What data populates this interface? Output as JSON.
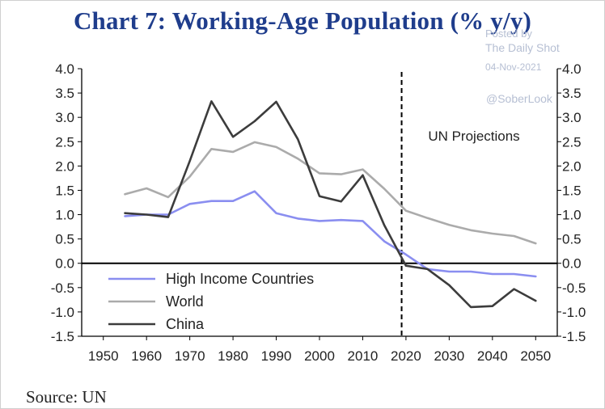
{
  "watermark": {
    "posted_by": "Posted by",
    "publisher": "The Daily Shot",
    "date": "04-Nov-2021",
    "handle": "@SoberLook"
  },
  "chart_data": {
    "type": "line",
    "title": "Chart 7: Working-Age Population (% y/y)",
    "source": "Source: UN",
    "xlim": [
      1945,
      2055
    ],
    "ylim": [
      -1.5,
      4.0
    ],
    "x_ticks": [
      1950,
      1960,
      1970,
      1980,
      1990,
      2000,
      2010,
      2020,
      2030,
      2040,
      2050
    ],
    "y_ticks": [
      4.0,
      3.5,
      3.0,
      2.5,
      2.0,
      1.5,
      1.0,
      0.5,
      0.0,
      -0.5,
      -1.0,
      -1.5
    ],
    "y_tick_labels": [
      "4.0",
      "3.5",
      "3.0",
      "2.5",
      "2.0",
      "1.5",
      "1.0",
      "0.5",
      "0.0",
      "-0.5",
      "-1.0",
      "-1.5"
    ],
    "divider_year": 2019,
    "annotation": "UN Projections",
    "grid": false,
    "legend_position": "bottom-left",
    "colors": {
      "High Income Countries": "#8a8ef0",
      "World": "#ababab",
      "China": "#3c3c3c",
      "title": "#1f3d8c"
    },
    "series": [
      {
        "name": "High Income Countries",
        "x": [
          1955,
          1960,
          1965,
          1970,
          1975,
          1980,
          1985,
          1990,
          1995,
          2000,
          2005,
          2010,
          2015,
          2020,
          2025,
          2030,
          2035,
          2040,
          2045,
          2050
        ],
        "values": [
          0.97,
          1.0,
          1.0,
          1.22,
          1.28,
          1.28,
          1.48,
          1.03,
          0.92,
          0.87,
          0.89,
          0.87,
          0.45,
          0.18,
          -0.12,
          -0.17,
          -0.17,
          -0.22,
          -0.22,
          -0.27
        ]
      },
      {
        "name": "World",
        "x": [
          1955,
          1960,
          1965,
          1970,
          1975,
          1980,
          1985,
          1990,
          1995,
          2000,
          2005,
          2010,
          2015,
          2020,
          2025,
          2030,
          2035,
          2040,
          2045,
          2050
        ],
        "values": [
          1.42,
          1.54,
          1.36,
          1.78,
          2.35,
          2.29,
          2.49,
          2.39,
          2.15,
          1.85,
          1.83,
          1.93,
          1.53,
          1.08,
          0.93,
          0.79,
          0.68,
          0.61,
          0.56,
          0.41
        ]
      },
      {
        "name": "China",
        "x": [
          1955,
          1960,
          1965,
          1970,
          1975,
          1980,
          1985,
          1990,
          1995,
          2000,
          2005,
          2010,
          2015,
          2020,
          2025,
          2030,
          2035,
          2040,
          2045,
          2050
        ],
        "values": [
          1.03,
          1.0,
          0.95,
          2.1,
          3.33,
          2.6,
          2.92,
          3.32,
          2.55,
          1.38,
          1.27,
          1.81,
          0.78,
          -0.05,
          -0.12,
          -0.45,
          -0.9,
          -0.88,
          -0.53,
          -0.77
        ]
      }
    ]
  }
}
